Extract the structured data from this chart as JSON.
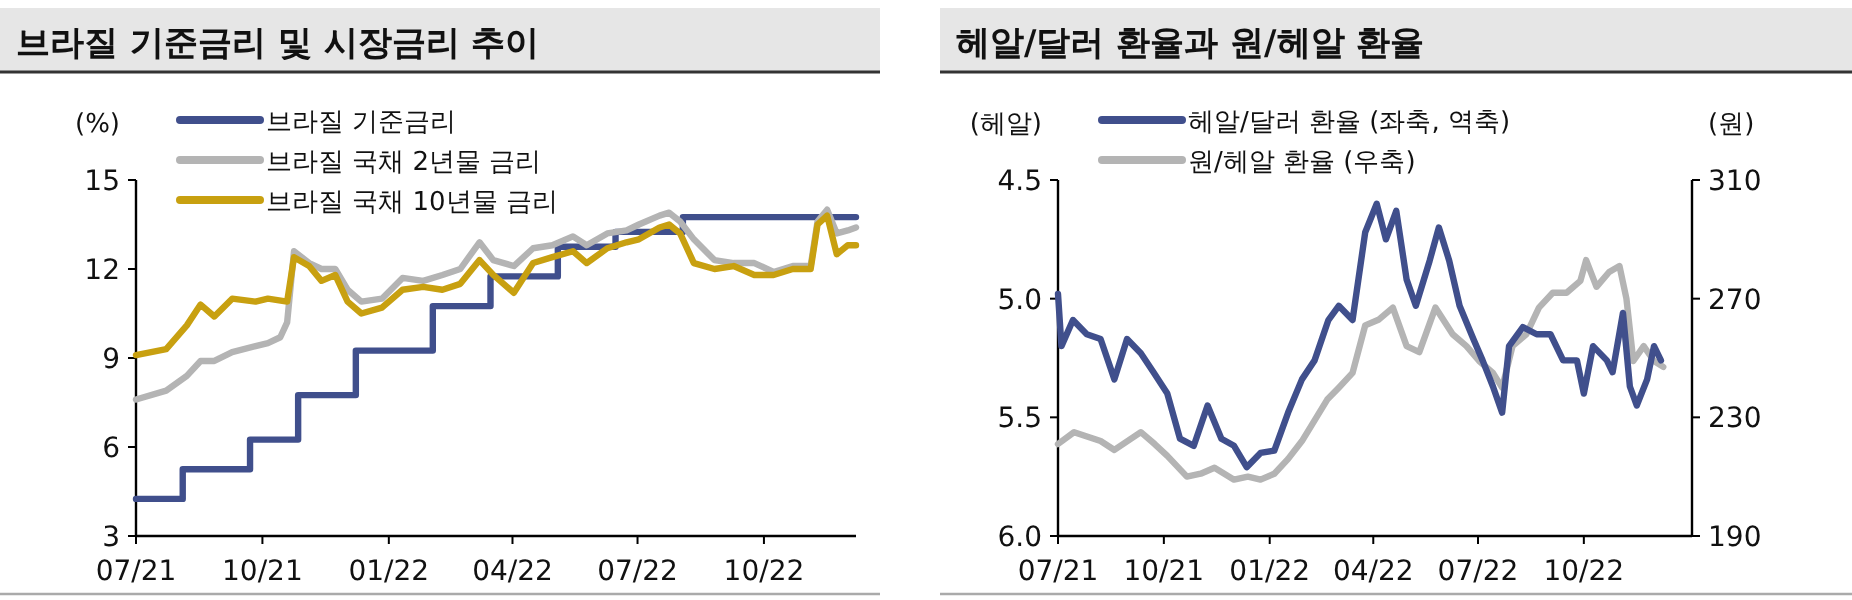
{
  "chart_data": [
    {
      "type": "line",
      "title": "브라질 기준금리 및 시장금리 추이",
      "ylabel": "(%)",
      "legend": "top left",
      "xlim": [
        "2021-07-01",
        "2022-12-07"
      ],
      "ylim": [
        3,
        15
      ],
      "yticks": [
        3,
        6,
        9,
        12,
        15
      ],
      "xticks": [
        {
          "value": "2021-07-01",
          "label": "07/21"
        },
        {
          "value": "2021-10-01",
          "label": "10/21"
        },
        {
          "value": "2022-01-01",
          "label": "01/22"
        },
        {
          "value": "2022-04-01",
          "label": "04/22"
        },
        {
          "value": "2022-07-01",
          "label": "07/22"
        },
        {
          "value": "2022-10-01",
          "label": "10/22"
        }
      ],
      "series": [
        {
          "name": "브라질 기준금리",
          "type": "step",
          "color": "#404f8c",
          "x": [
            "2021-07-01",
            "2021-08-04",
            "2021-09-22",
            "2021-10-27",
            "2021-12-08",
            "2022-02-02",
            "2022-03-16",
            "2022-05-04",
            "2022-06-15",
            "2022-08-03",
            "2022-12-07"
          ],
          "values": [
            4.25,
            5.25,
            6.25,
            7.75,
            9.25,
            10.75,
            11.75,
            12.75,
            13.25,
            13.75,
            13.75
          ]
        },
        {
          "name": "브라질 국채 2년물 금리",
          "type": "line",
          "color": "#b4b4b4",
          "x": [
            "2021-07-01",
            "2021-07-23",
            "2021-08-07",
            "2021-08-17",
            "2021-08-27",
            "2021-09-09",
            "2021-09-26",
            "2021-10-05",
            "2021-10-14",
            "2021-10-19",
            "2021-10-24",
            "2021-11-04",
            "2021-11-13",
            "2021-11-23",
            "2021-12-02",
            "2021-12-12",
            "2021-12-27",
            "2022-01-11",
            "2022-01-26",
            "2022-02-09",
            "2022-02-22",
            "2022-03-08",
            "2022-03-18",
            "2022-04-02",
            "2022-04-16",
            "2022-04-30",
            "2022-05-15",
            "2022-05-25",
            "2022-06-09",
            "2022-06-23",
            "2022-07-02",
            "2022-07-17",
            "2022-07-24",
            "2022-08-01",
            "2022-08-11",
            "2022-08-26",
            "2022-09-09",
            "2022-09-24",
            "2022-10-08",
            "2022-10-22",
            "2022-11-04",
            "2022-11-09",
            "2022-11-16",
            "2022-11-23",
            "2022-12-01",
            "2022-12-07"
          ],
          "values": [
            7.6,
            7.9,
            8.4,
            8.9,
            8.9,
            9.2,
            9.4,
            9.5,
            9.7,
            10.2,
            12.6,
            12.2,
            12.0,
            12.0,
            11.3,
            10.9,
            11.0,
            11.7,
            11.6,
            11.8,
            12.0,
            12.9,
            12.3,
            12.1,
            12.7,
            12.8,
            13.1,
            12.8,
            13.2,
            13.3,
            13.5,
            13.8,
            13.9,
            13.6,
            13.0,
            12.3,
            12.2,
            12.2,
            11.9,
            12.1,
            12.1,
            13.6,
            14.0,
            13.2,
            13.3,
            13.4
          ]
        },
        {
          "name": "브라질 국채 10년물 금리",
          "type": "line",
          "color": "#c8a010",
          "x": [
            "2021-07-01",
            "2021-07-23",
            "2021-08-07",
            "2021-08-17",
            "2021-08-27",
            "2021-09-09",
            "2021-09-26",
            "2021-10-05",
            "2021-10-19",
            "2021-10-24",
            "2021-11-04",
            "2021-11-13",
            "2021-11-23",
            "2021-12-02",
            "2021-12-12",
            "2021-12-27",
            "2022-01-11",
            "2022-01-26",
            "2022-02-09",
            "2022-02-22",
            "2022-03-08",
            "2022-03-18",
            "2022-04-02",
            "2022-04-16",
            "2022-04-30",
            "2022-05-15",
            "2022-05-25",
            "2022-06-09",
            "2022-06-23",
            "2022-07-02",
            "2022-07-17",
            "2022-07-24",
            "2022-08-01",
            "2022-08-11",
            "2022-08-26",
            "2022-09-09",
            "2022-09-24",
            "2022-10-08",
            "2022-10-22",
            "2022-11-04",
            "2022-11-09",
            "2022-11-16",
            "2022-11-23",
            "2022-12-01",
            "2022-12-07"
          ],
          "values": [
            9.1,
            9.3,
            10.1,
            10.8,
            10.4,
            11.0,
            10.9,
            11.0,
            10.9,
            12.4,
            12.1,
            11.6,
            11.8,
            10.9,
            10.5,
            10.7,
            11.3,
            11.4,
            11.3,
            11.5,
            12.3,
            11.8,
            11.2,
            12.2,
            12.4,
            12.6,
            12.2,
            12.7,
            12.9,
            13.0,
            13.4,
            13.5,
            13.2,
            12.2,
            12.0,
            12.1,
            11.8,
            11.8,
            12.0,
            12.0,
            13.5,
            13.8,
            12.5,
            12.8,
            12.8
          ]
        }
      ]
    },
    {
      "type": "line",
      "title": "헤알/달러 환율과 원/헤알 환율",
      "ylabel": "(헤알)",
      "y2label": "(원)",
      "legend": "top left",
      "xlim": [
        "2021-07-01",
        "2023-01-03"
      ],
      "ylim": [
        6.0,
        4.5
      ],
      "yticks": [
        4.5,
        {
          "value": 5,
          "label": "5.0"
        },
        5.5,
        {
          "value": 6,
          "label": "6.0"
        }
      ],
      "y2lim": [
        190,
        310
      ],
      "y2ticks": [
        190,
        230,
        270,
        310
      ],
      "xticks": [
        {
          "value": "2021-07-01",
          "label": "07/21"
        },
        {
          "value": "2021-10-01",
          "label": "10/21"
        },
        {
          "value": "2022-01-01",
          "label": "01/22"
        },
        {
          "value": "2022-04-01",
          "label": "04/22"
        },
        {
          "value": "2022-07-01",
          "label": "07/22"
        },
        {
          "value": "2022-10-01",
          "label": "10/22"
        }
      ],
      "series": [
        {
          "name": "원/헤알 환율 (우축)",
          "type": "line",
          "axis": "y2",
          "color": "#b4b4b4",
          "x": [
            "2021-07-01",
            "2021-07-15",
            "2021-08-07",
            "2021-08-19",
            "2021-09-11",
            "2021-09-23",
            "2021-10-04",
            "2021-10-21",
            "2021-11-02",
            "2021-11-14",
            "2021-12-01",
            "2021-12-13",
            "2021-12-24",
            "2022-01-05",
            "2022-01-17",
            "2022-01-29",
            "2022-02-09",
            "2022-02-20",
            "2022-03-02",
            "2022-03-14",
            "2022-03-25",
            "2022-04-06",
            "2022-04-18",
            "2022-04-30",
            "2022-05-11",
            "2022-05-25",
            "2022-06-09",
            "2022-06-21",
            "2022-07-02",
            "2022-07-14",
            "2022-07-22",
            "2022-07-31",
            "2022-08-12",
            "2022-08-23",
            "2022-09-04",
            "2022-09-16",
            "2022-09-28",
            "2022-10-03",
            "2022-10-12",
            "2022-10-23",
            "2022-11-01",
            "2022-11-07",
            "2022-11-13",
            "2022-11-22",
            "2022-12-01",
            "2022-12-09"
          ],
          "values": [
            221,
            225,
            222,
            219,
            225,
            221,
            217,
            210,
            211,
            213,
            209,
            210,
            209,
            211,
            216,
            222,
            229,
            236,
            240,
            245,
            261,
            263,
            267,
            254,
            252,
            267,
            258,
            254,
            249,
            245,
            240,
            254,
            258,
            267,
            272,
            272,
            276,
            283,
            274,
            279,
            281,
            270,
            249,
            254,
            249,
            247
          ]
        },
        {
          "name": "헤알/달러 환율 (좌축, 역축)",
          "type": "line",
          "color": "#404f8c",
          "x": [
            "2021-07-01",
            "2021-07-04",
            "2021-07-14",
            "2021-07-26",
            "2021-08-07",
            "2021-08-19",
            "2021-08-30",
            "2021-09-11",
            "2021-09-22",
            "2021-10-04",
            "2021-10-15",
            "2021-10-27",
            "2021-11-08",
            "2021-11-20",
            "2021-12-01",
            "2021-12-12",
            "2021-12-24",
            "2022-01-05",
            "2022-01-17",
            "2022-01-29",
            "2022-02-09",
            "2022-02-21",
            "2022-03-02",
            "2022-03-14",
            "2022-03-25",
            "2022-04-04",
            "2022-04-12",
            "2022-04-21",
            "2022-04-30",
            "2022-05-08",
            "2022-05-20",
            "2022-05-28",
            "2022-06-06",
            "2022-06-15",
            "2022-06-27",
            "2022-07-05",
            "2022-07-14",
            "2022-07-22",
            "2022-07-28",
            "2022-08-09",
            "2022-08-21",
            "2022-09-02",
            "2022-09-13",
            "2022-09-25",
            "2022-10-01",
            "2022-10-09",
            "2022-10-21",
            "2022-10-26",
            "2022-11-04",
            "2022-11-10",
            "2022-11-16",
            "2022-11-25",
            "2022-12-01",
            "2022-12-07"
          ],
          "values": [
            4.98,
            5.2,
            5.09,
            5.15,
            5.17,
            5.34,
            5.17,
            5.23,
            5.31,
            5.4,
            5.59,
            5.62,
            5.45,
            5.59,
            5.62,
            5.71,
            5.65,
            5.64,
            5.48,
            5.34,
            5.26,
            5.09,
            5.03,
            5.09,
            4.72,
            4.6,
            4.75,
            4.63,
            4.92,
            5.03,
            4.84,
            4.7,
            4.84,
            5.03,
            5.17,
            5.26,
            5.37,
            5.48,
            5.2,
            5.12,
            5.15,
            5.15,
            5.26,
            5.26,
            5.4,
            5.2,
            5.26,
            5.31,
            5.06,
            5.37,
            5.45,
            5.34,
            5.2,
            5.26
          ]
        }
      ]
    }
  ]
}
